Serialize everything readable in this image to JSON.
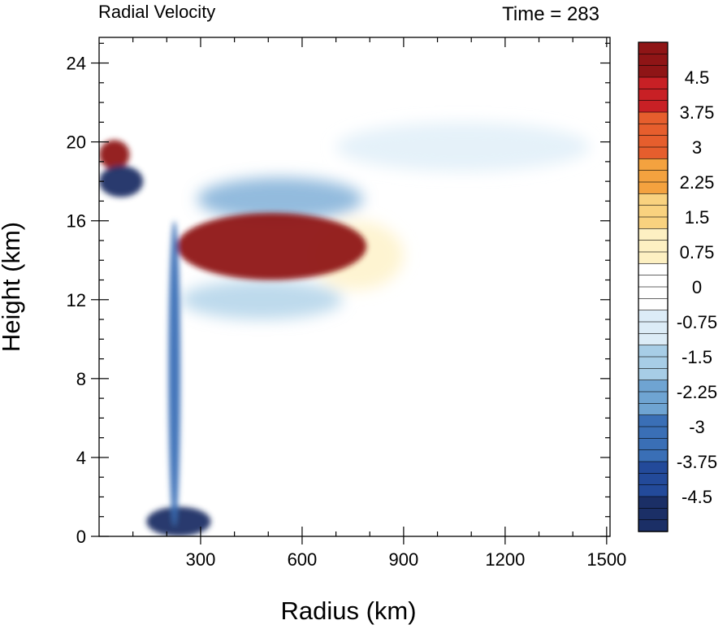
{
  "chart_data": {
    "type": "heatmap",
    "title": "Radial Velocity",
    "subtitle": "Time = 283",
    "xlabel": "Radius (km)",
    "ylabel": "Height (km)",
    "xlim": [
      0,
      1510
    ],
    "ylim": [
      0,
      25.3
    ],
    "xticks": [
      300,
      600,
      900,
      1200,
      1500
    ],
    "xtick_labels": [
      "300",
      "600",
      "900",
      "1200",
      "1500"
    ],
    "yticks": [
      0,
      4,
      8,
      12,
      16,
      20,
      24
    ],
    "ytick_labels": [
      "0",
      "4",
      "8",
      "12",
      "16",
      "20",
      "24"
    ],
    "grid": false,
    "colorbar": {
      "vmin": -5.25,
      "vmax": 5.25,
      "step": 0.25,
      "tick_values": [
        4.5,
        3.75,
        3,
        2.25,
        1.5,
        0.75,
        0,
        -0.75,
        -1.5,
        -2.25,
        -3,
        -3.75,
        -4.5
      ],
      "tick_labels": [
        "4.5",
        "3.75",
        "3",
        "2.25",
        "1.5",
        "0.75",
        "0",
        "-0.75",
        "-1.5",
        "-2.25",
        "-3",
        "-3.75",
        "-4.5"
      ],
      "palette": [
        "#1b2f66",
        "#234a9a",
        "#3a6fb6",
        "#6fa4d2",
        "#a7cde6",
        "#dcecf7",
        "#ffffff",
        "#fdf0c2",
        "#f9d27f",
        "#f4a23f",
        "#e65e2d",
        "#c82025",
        "#8f1516"
      ]
    },
    "features": [
      {
        "label": "upper-level outflow jet",
        "r": [
          230,
          790
        ],
        "z": [
          13,
          16.4
        ],
        "value": 6
      },
      {
        "label": "outflow jet extension",
        "r": [
          620,
          900
        ],
        "z": [
          12.5,
          16
        ],
        "value": 1.2
      },
      {
        "label": "upper inflow layer",
        "r": [
          290,
          780
        ],
        "z": [
          16,
          18.2
        ],
        "value": -2.2
      },
      {
        "label": "lower inflow layer",
        "r": [
          240,
          720
        ],
        "z": [
          11,
          13
        ],
        "value": -1.6
      },
      {
        "label": "stratospheric inflow",
        "r": [
          700,
          1450
        ],
        "z": [
          18.5,
          21
        ],
        "value": -1.2
      },
      {
        "label": "boundary-layer inflow",
        "r": [
          140,
          330
        ],
        "z": [
          0,
          1.5
        ],
        "value": -4.5
      },
      {
        "label": "eyewall band",
        "r": [
          205,
          240
        ],
        "z": [
          0.5,
          16
        ],
        "value": -3.5
      },
      {
        "label": "near-core outflow",
        "r": [
          0,
          90
        ],
        "z": [
          18.6,
          20.1
        ],
        "value": 5.5
      },
      {
        "label": "near-core inflow",
        "r": [
          0,
          130
        ],
        "z": [
          17.2,
          18.8
        ],
        "value": -5
      }
    ]
  }
}
